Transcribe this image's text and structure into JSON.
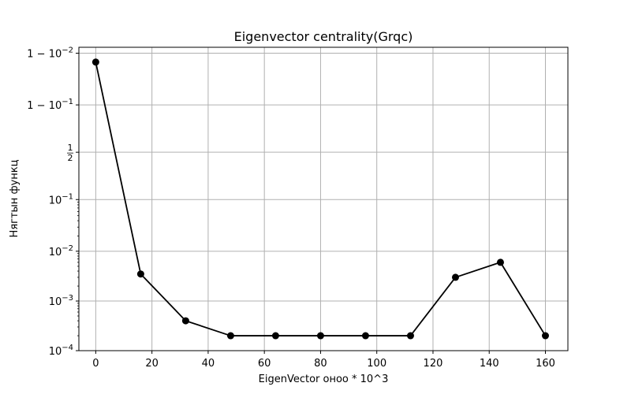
{
  "chart_data": {
    "type": "line",
    "title": "Eigenvector centrality(Grqc)",
    "xlabel": "EigenVector оноо * 10^3",
    "ylabel": "Нягтын функц",
    "y_scale": "logit",
    "grid": true,
    "legend": "none",
    "xlim": [
      -6,
      168
    ],
    "xticks": [
      0,
      20,
      40,
      60,
      80,
      100,
      120,
      140,
      160
    ],
    "yticks": [
      {
        "value": 0.0001,
        "base": "10",
        "exp": "−4",
        "prefix": ""
      },
      {
        "value": 0.001,
        "base": "10",
        "exp": "−3",
        "prefix": ""
      },
      {
        "value": 0.01,
        "base": "10",
        "exp": "−2",
        "prefix": ""
      },
      {
        "value": 0.1,
        "base": "10",
        "exp": "−1",
        "prefix": ""
      },
      {
        "value": 0.5,
        "frac": [
          "1",
          "2"
        ]
      },
      {
        "value": 0.9,
        "base": "10",
        "exp": "−1",
        "prefix": "1 − "
      },
      {
        "value": 0.99,
        "base": "10",
        "exp": "−2",
        "prefix": "1 − "
      }
    ],
    "x": [
      0,
      16,
      32,
      48,
      64,
      80,
      96,
      112,
      128,
      144,
      160
    ],
    "series": [
      {
        "values": [
          0.985,
          0.0035,
          0.0004,
          0.0002,
          0.0002,
          0.0002,
          0.0002,
          0.0002,
          0.003,
          0.006,
          0.0002
        ],
        "color": "#000000",
        "marker": "circle"
      }
    ],
    "colors": {
      "grid": "#b0b0b0",
      "line": "#000000",
      "axes": "#000000"
    }
  }
}
